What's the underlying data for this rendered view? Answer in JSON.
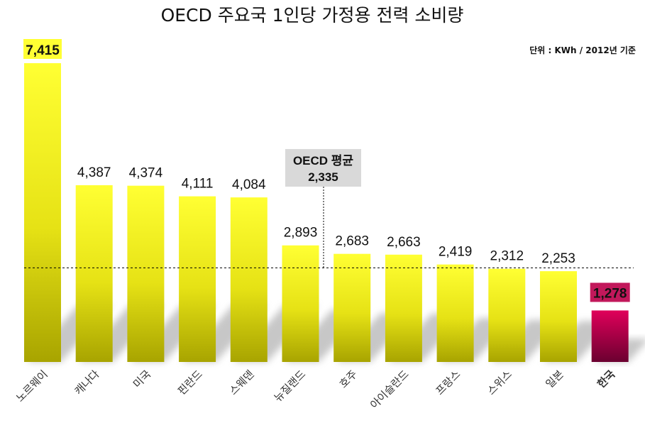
{
  "chart_data": {
    "type": "bar",
    "title": "OECD 주요국 1인당 가정용 전력 소비량",
    "unit_note": "단위 : KWh / 2012년 기준",
    "categories": [
      "노르웨이",
      "캐나다",
      "미국",
      "핀란드",
      "스웨덴",
      "뉴질랜드",
      "호주",
      "아이슬란드",
      "프랑스",
      "스위스",
      "일본",
      "한국"
    ],
    "values": [
      7415,
      4387,
      4374,
      4111,
      4084,
      2893,
      2683,
      2663,
      2419,
      2312,
      2253,
      1278
    ],
    "value_labels": [
      "7,415",
      "4,387",
      "4,374",
      "4,111",
      "4,084",
      "2,893",
      "2,683",
      "2,663",
      "2,419",
      "2,312",
      "2,253",
      "1,278"
    ],
    "highlight": {
      "category": "한국",
      "color": "#c2185b"
    },
    "max_label_highlight_color": "#ffff33",
    "average": {
      "label": "OECD 평균",
      "value": 2335,
      "value_label": "2,335"
    },
    "ylim": [
      0,
      7415
    ],
    "grid": false,
    "colors": {
      "bar_top": "#ffff33",
      "bar_bottom": "#a8a400",
      "highlight_top": "#e0005a",
      "highlight_bottom": "#6b0030",
      "avg_box": "#d9d9d9"
    }
  }
}
